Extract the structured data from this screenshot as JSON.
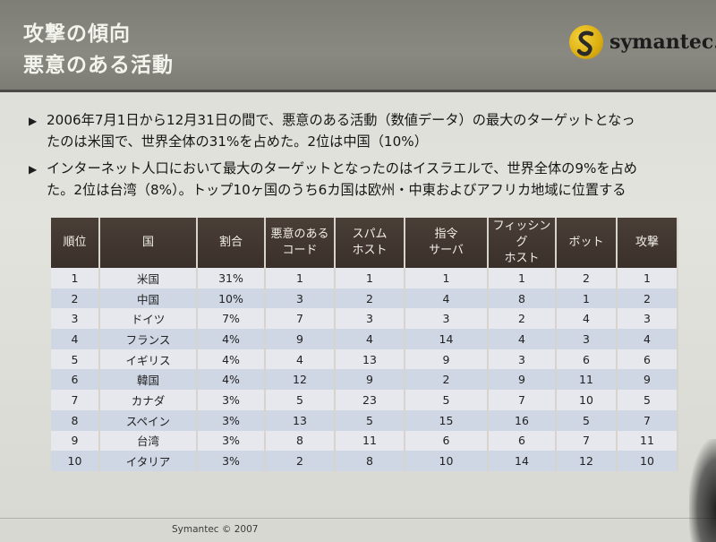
{
  "header": {
    "title_line1": "攻撃の傾向",
    "title_line2": "悪意のある活動",
    "logo_text": "symantec."
  },
  "bullets": [
    {
      "line1": "2006年7月1日から12月31日の間で、悪意のある活動（数値データ）の最大のターゲットとなっ",
      "line2": "たのは米国で、世界全体の31%を占めた。2位は中国（10%）"
    },
    {
      "line1": "インターネット人口において最大のターゲットとなったのはイスラエルで、世界全体の9%を占め",
      "line2": "た。2位は台湾（8%）。トップ10ヶ国のうち6カ国は欧州・中東およびアフリカ地域に位置する"
    }
  ],
  "table": {
    "headers": [
      "順位",
      "国",
      "割合",
      "悪意のある\nコード",
      "スパム\nホスト",
      "指令\nサーバ",
      "フィッシング\nホスト",
      "ボット",
      "攻撃"
    ],
    "rows": [
      [
        "1",
        "米国",
        "31%",
        "1",
        "1",
        "1",
        "1",
        "2",
        "1"
      ],
      [
        "2",
        "中国",
        "10%",
        "3",
        "2",
        "4",
        "8",
        "1",
        "2"
      ],
      [
        "3",
        "ドイツ",
        "7%",
        "7",
        "3",
        "3",
        "2",
        "4",
        "3"
      ],
      [
        "4",
        "フランス",
        "4%",
        "9",
        "4",
        "14",
        "4",
        "3",
        "4"
      ],
      [
        "5",
        "イギリス",
        "4%",
        "4",
        "13",
        "9",
        "3",
        "6",
        "6"
      ],
      [
        "6",
        "韓国",
        "4%",
        "12",
        "9",
        "2",
        "9",
        "11",
        "9"
      ],
      [
        "7",
        "カナダ",
        "3%",
        "5",
        "23",
        "5",
        "7",
        "10",
        "5"
      ],
      [
        "8",
        "スペイン",
        "3%",
        "13",
        "5",
        "15",
        "16",
        "5",
        "7"
      ],
      [
        "9",
        "台湾",
        "3%",
        "8",
        "11",
        "6",
        "6",
        "7",
        "11"
      ],
      [
        "10",
        "イタリア",
        "3%",
        "2",
        "8",
        "10",
        "14",
        "12",
        "10"
      ]
    ]
  },
  "footer": {
    "copyright": "Symantec © 2007"
  },
  "colors": {
    "header_bg": "#858580",
    "table_header_bg": "#3f352e",
    "row_blue": "#cfd6e4",
    "brand_yellow": "#e2b514"
  },
  "icons": {
    "bullet": "triangle-right-icon",
    "logo": "symantec-logo-icon"
  }
}
